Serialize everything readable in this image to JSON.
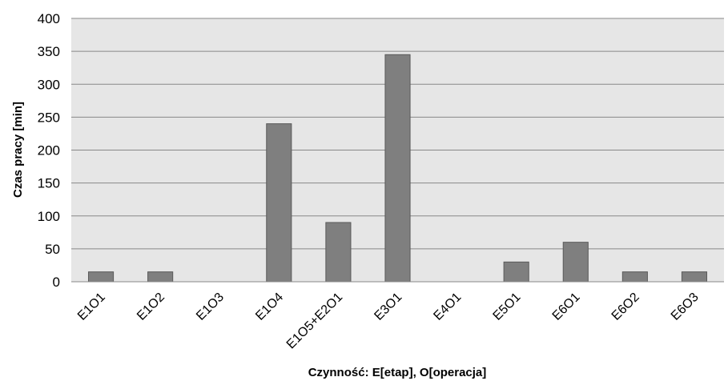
{
  "chart_data": {
    "type": "bar",
    "title": "",
    "xlabel": "Czynność: E[etap], O[operacja]",
    "ylabel": "Czas pracy [min]",
    "ylim": [
      0,
      400
    ],
    "yticks": [
      0,
      50,
      100,
      150,
      200,
      250,
      300,
      350,
      400
    ],
    "grid": true,
    "legend": "none",
    "categories": [
      "E1O1",
      "E1O2",
      "E1O3",
      "E1O4",
      "E1O5+E2O1",
      "E3O1",
      "E4O1",
      "E5O1",
      "E6O1",
      "E6O2",
      "E6O3"
    ],
    "values": [
      15,
      15,
      0,
      240,
      90,
      345,
      0,
      30,
      60,
      15,
      15
    ],
    "colors": {
      "plot_background": "#e6e6e6",
      "bar": "#7f7f7f",
      "bar_border": "#5a5a5a",
      "gridline": "#888888"
    }
  }
}
